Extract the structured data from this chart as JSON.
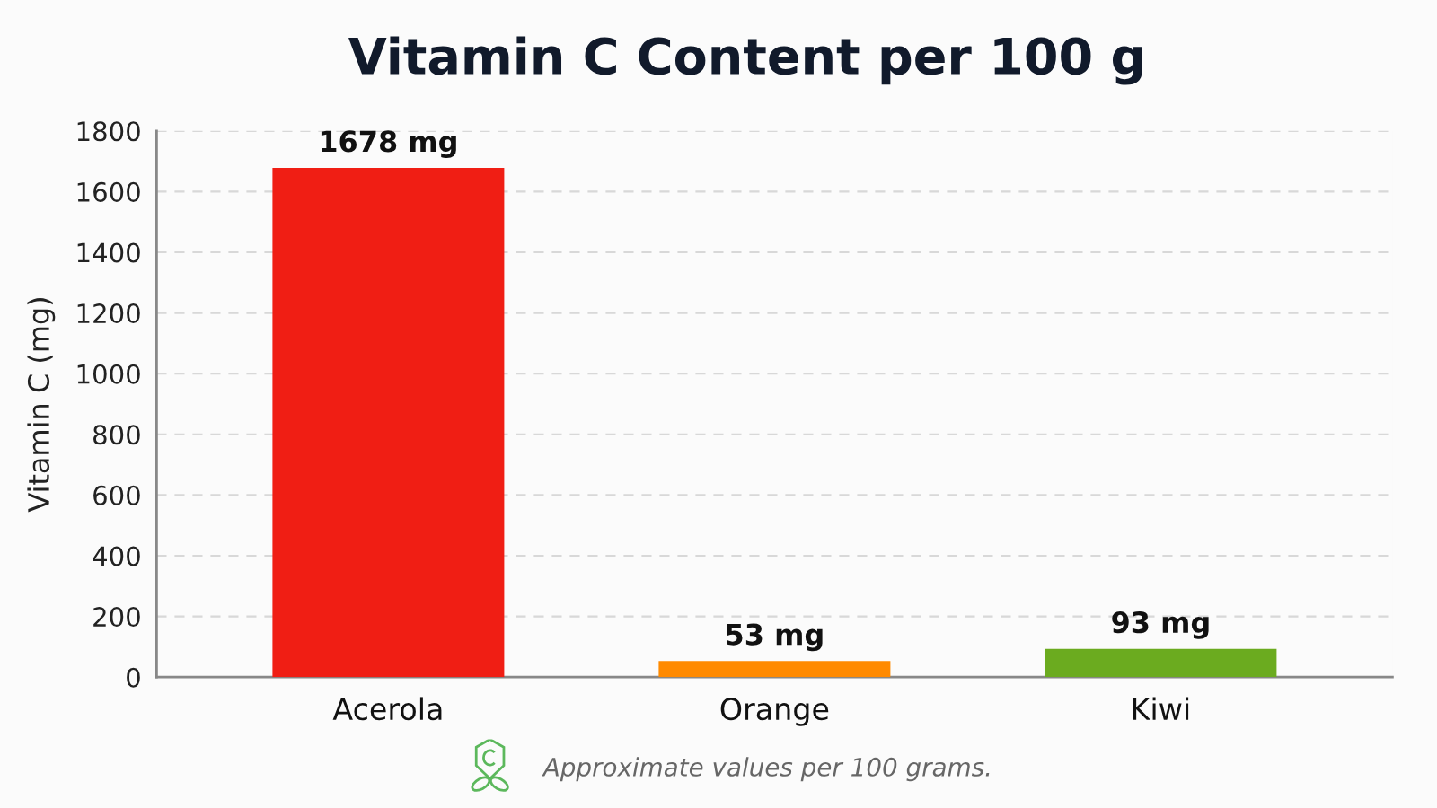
{
  "chart_data": {
    "type": "bar",
    "title": "Vitamin C Content per 100 g",
    "ylabel": "Vitamin C (mg)",
    "categories": [
      "Acerola",
      "Orange",
      "Kiwi"
    ],
    "values": [
      1678,
      53,
      93
    ],
    "colors": [
      "#f01e14",
      "#ff8a00",
      "#6bab1f"
    ],
    "value_labels": [
      "1678 mg",
      "53 mg",
      "93 mg"
    ],
    "ylim": [
      0,
      1800
    ],
    "yticks": [
      0,
      200,
      400,
      600,
      800,
      1000,
      1200,
      1400,
      1600,
      1800
    ],
    "grid": "y",
    "annotations": [
      "Approximate values per 100 grams."
    ]
  }
}
